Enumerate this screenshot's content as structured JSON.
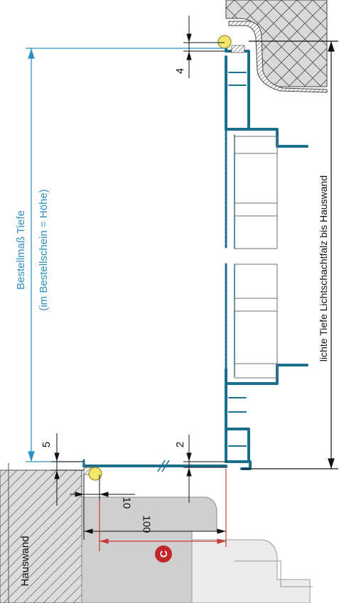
{
  "labels": {
    "order_dimension_title": "Bestellmaß Tiefe",
    "order_dimension_note": "(im Bestellschein = Höhe)",
    "clear_depth": "lichte Tiefe Lichtschachtfalz bis Hauswand",
    "house_wall": "Hauswand"
  },
  "dimensions": {
    "top_offset": "4",
    "bottom_offset": "5",
    "gap": "2",
    "small_dim": "10",
    "large_dim": "100"
  },
  "marker": {
    "letter": "C"
  },
  "colors": {
    "profile_blue": "#1a6f8c",
    "dimension_blue": "#2f8fc4",
    "wall_gray": "#cfcfcf",
    "marker_red": "#c0262a",
    "seal_yellow": "#f3e66a",
    "dimension_red": "#c43c3c"
  }
}
